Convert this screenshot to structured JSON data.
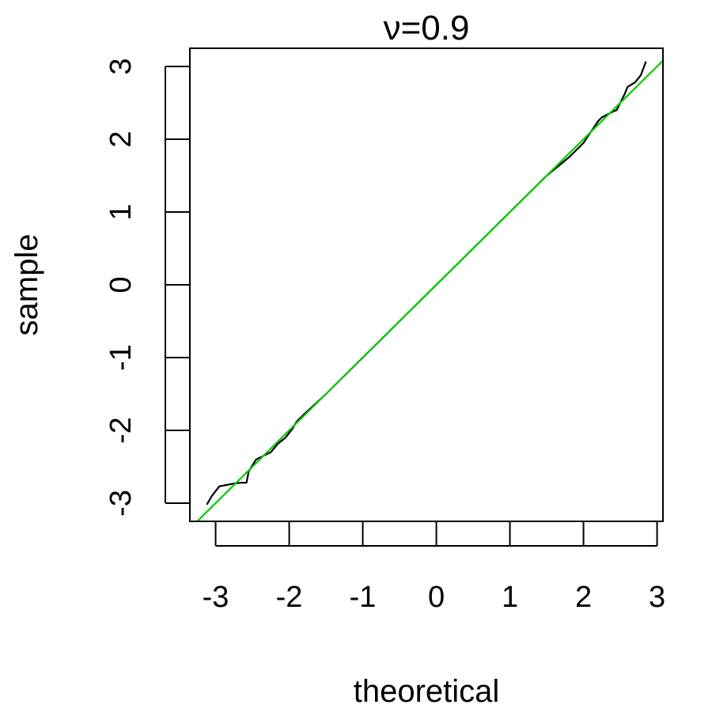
{
  "chart_data": {
    "type": "line",
    "title": "ν=0.9",
    "xlabel": "theoretical",
    "ylabel": "sample",
    "xlim": [
      -3.35,
      3.08
    ],
    "ylim": [
      -3.25,
      3.25
    ],
    "x_ticks": [
      -3,
      -2,
      -1,
      0,
      1,
      2,
      3
    ],
    "x_tick_labels": [
      "-3",
      "-2",
      "-1",
      "0",
      "1",
      "2",
      "3"
    ],
    "y_ticks": [
      -3,
      -2,
      -1,
      0,
      1,
      2,
      3
    ],
    "y_tick_labels": [
      "-3",
      "-2",
      "-1",
      "0",
      "1",
      "2",
      "3"
    ],
    "grid": false,
    "series": [
      {
        "color": "#000000",
        "x": [
          -3.12,
          -3.05,
          -2.95,
          -2.75,
          -2.65,
          -2.58,
          -2.55,
          -2.45,
          -2.35,
          -2.25,
          -2.15,
          -2.05,
          -1.95,
          -1.9,
          -1.8,
          -1.5,
          -1.0,
          -0.5,
          0.0,
          0.5,
          1.0,
          1.5,
          1.8,
          2.0,
          2.1,
          2.2,
          2.25,
          2.4,
          2.45,
          2.55,
          2.6,
          2.7,
          2.78,
          2.85
        ],
        "y": [
          -3.02,
          -2.9,
          -2.77,
          -2.73,
          -2.72,
          -2.72,
          -2.56,
          -2.4,
          -2.35,
          -2.3,
          -2.18,
          -2.1,
          -1.97,
          -1.88,
          -1.78,
          -1.5,
          -1.0,
          -0.5,
          0.0,
          0.5,
          1.0,
          1.5,
          1.75,
          1.95,
          2.1,
          2.25,
          2.3,
          2.38,
          2.4,
          2.6,
          2.72,
          2.78,
          2.88,
          3.07
        ]
      },
      {
        "color": "#00cc00",
        "x": [
          -3.35,
          3.08
        ],
        "y": [
          -3.35,
          3.08
        ]
      }
    ]
  }
}
